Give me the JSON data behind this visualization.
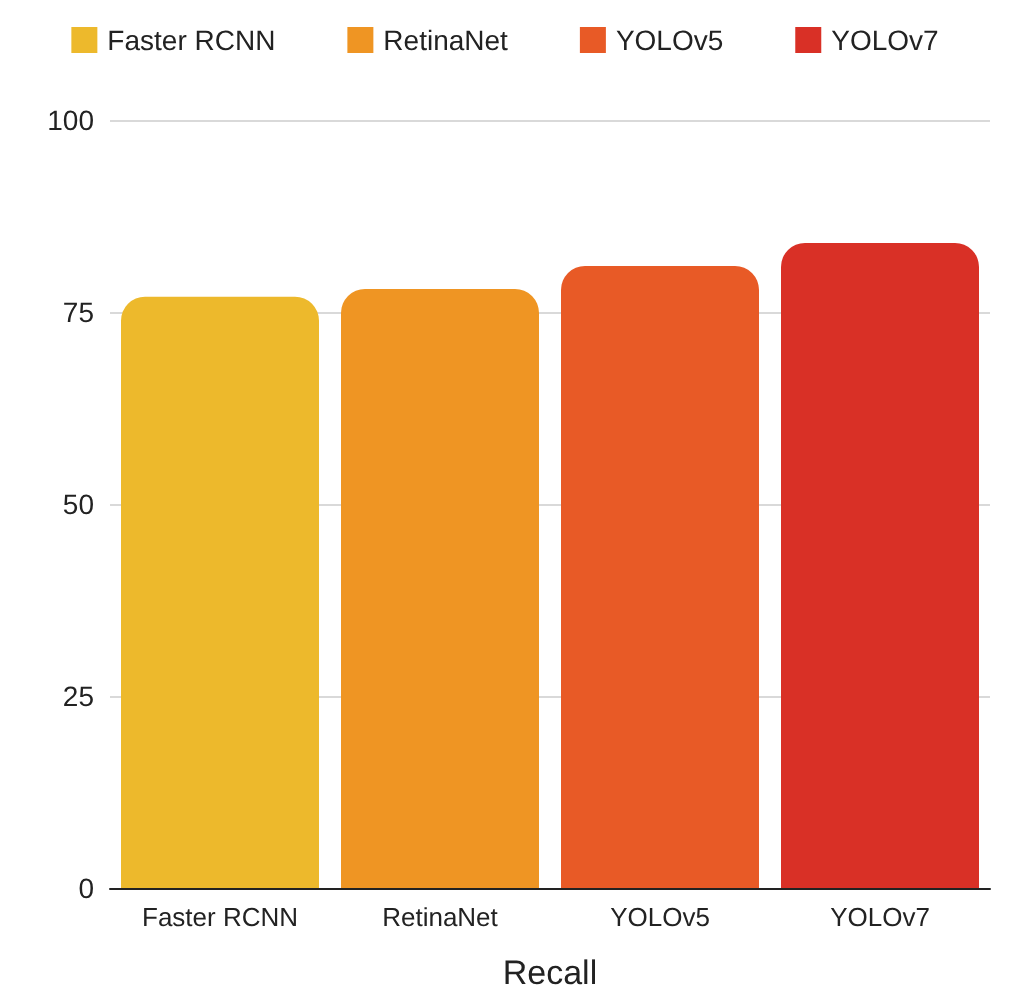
{
  "chart_data": {
    "type": "bar",
    "xlabel": "Recall",
    "categories": [
      "Faster RCNN",
      "RetinaNet",
      "YOLOv5",
      "YOLOv7"
    ],
    "series": [
      {
        "name": "Faster RCNN",
        "color": "#edb92c",
        "values": [
          77,
          null,
          null,
          null
        ]
      },
      {
        "name": "RetinaNet",
        "color": "#ef9523",
        "values": [
          null,
          78,
          null,
          null
        ]
      },
      {
        "name": "YOLOv5",
        "color": "#e85a26",
        "values": [
          null,
          null,
          81,
          null
        ]
      },
      {
        "name": "YOLOv7",
        "color": "#d93026",
        "values": [
          null,
          null,
          null,
          84
        ]
      }
    ],
    "stacked": true,
    "ylim": [
      0,
      100
    ],
    "yticks": [
      0,
      25,
      50,
      75,
      100
    ],
    "grid": "y",
    "legend": "top"
  }
}
